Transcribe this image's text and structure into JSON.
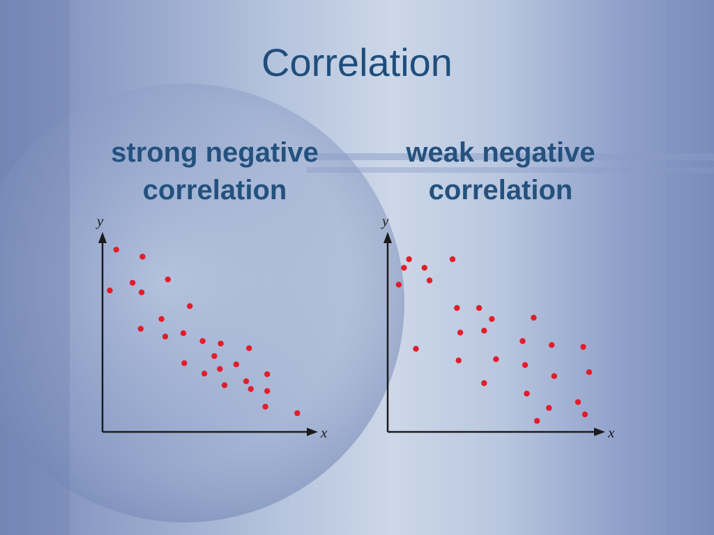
{
  "slide": {
    "title": "Correlation"
  },
  "chart_data": [
    {
      "type": "scatter",
      "title": "strong negative correlation",
      "xlabel": "x",
      "ylabel": "y",
      "marker_color": "#e21d2a",
      "xlim": [
        0,
        100
      ],
      "ylim": [
        0,
        100
      ],
      "points": [
        {
          "x": 6.2,
          "y": 87.5
        },
        {
          "x": 18.1,
          "y": 84.1
        },
        {
          "x": 3.3,
          "y": 67.9
        },
        {
          "x": 13.6,
          "y": 71.6
        },
        {
          "x": 17.7,
          "y": 67.0
        },
        {
          "x": 29.6,
          "y": 73.2
        },
        {
          "x": 26.7,
          "y": 54.2
        },
        {
          "x": 39.5,
          "y": 60.4
        },
        {
          "x": 17.3,
          "y": 49.5
        },
        {
          "x": 28.4,
          "y": 45.8
        },
        {
          "x": 36.6,
          "y": 47.4
        },
        {
          "x": 45.3,
          "y": 43.6
        },
        {
          "x": 53.5,
          "y": 42.4
        },
        {
          "x": 66.3,
          "y": 40.2
        },
        {
          "x": 50.6,
          "y": 36.4
        },
        {
          "x": 37.0,
          "y": 33.0
        },
        {
          "x": 60.5,
          "y": 32.4
        },
        {
          "x": 53.1,
          "y": 30.2
        },
        {
          "x": 46.1,
          "y": 28.0
        },
        {
          "x": 74.5,
          "y": 27.7
        },
        {
          "x": 65.0,
          "y": 24.3
        },
        {
          "x": 55.2,
          "y": 22.4
        },
        {
          "x": 67.1,
          "y": 20.6
        },
        {
          "x": 74.5,
          "y": 19.6
        },
        {
          "x": 73.7,
          "y": 12.1
        },
        {
          "x": 88.1,
          "y": 9.0
        }
      ]
    },
    {
      "type": "scatter",
      "title": "weak negative correlation",
      "xlabel": "x",
      "ylabel": "y",
      "marker_color": "#e21d2a",
      "xlim": [
        0,
        100
      ],
      "ylim": [
        0,
        100
      ],
      "points": [
        {
          "x": 7.8,
          "y": 78.8
        },
        {
          "x": 10.2,
          "y": 82.9
        },
        {
          "x": 17.6,
          "y": 78.8
        },
        {
          "x": 31.0,
          "y": 82.9
        },
        {
          "x": 5.3,
          "y": 70.7
        },
        {
          "x": 20.0,
          "y": 72.7
        },
        {
          "x": 33.1,
          "y": 59.5
        },
        {
          "x": 43.7,
          "y": 59.5
        },
        {
          "x": 49.8,
          "y": 54.2
        },
        {
          "x": 69.8,
          "y": 54.8
        },
        {
          "x": 34.7,
          "y": 47.7
        },
        {
          "x": 46.1,
          "y": 48.6
        },
        {
          "x": 64.5,
          "y": 43.6
        },
        {
          "x": 78.4,
          "y": 41.7
        },
        {
          "x": 93.5,
          "y": 40.8
        },
        {
          "x": 13.5,
          "y": 39.9
        },
        {
          "x": 33.9,
          "y": 34.3
        },
        {
          "x": 51.8,
          "y": 34.9
        },
        {
          "x": 65.7,
          "y": 32.1
        },
        {
          "x": 79.6,
          "y": 26.8
        },
        {
          "x": 96.3,
          "y": 28.7
        },
        {
          "x": 46.1,
          "y": 23.4
        },
        {
          "x": 66.5,
          "y": 18.4
        },
        {
          "x": 91.0,
          "y": 14.3
        },
        {
          "x": 77.1,
          "y": 11.5
        },
        {
          "x": 94.3,
          "y": 8.4
        },
        {
          "x": 71.4,
          "y": 5.3
        }
      ]
    }
  ]
}
